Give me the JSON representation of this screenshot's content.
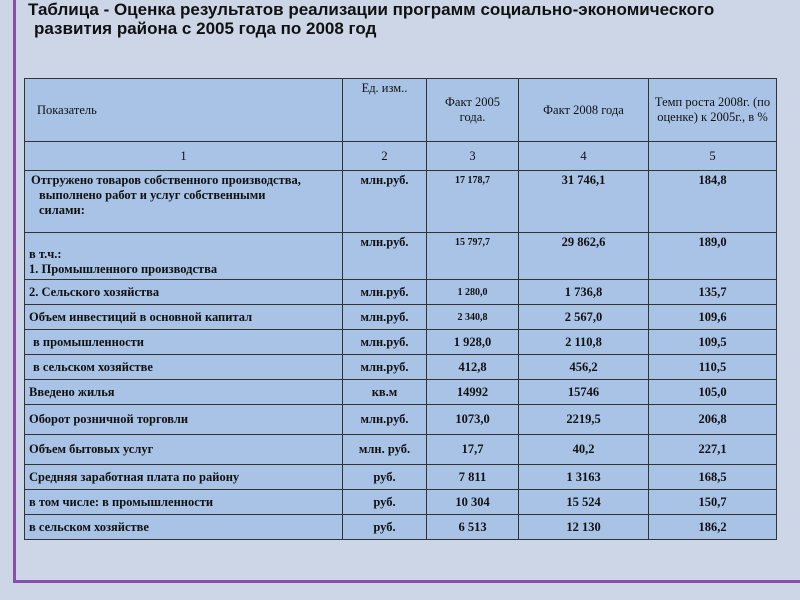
{
  "title": {
    "line1": "Таблица - Оценка результатов реализации программ социально-экономического",
    "line2": "развития района с 2005 года по 2008 год"
  },
  "table": {
    "header": [
      "Показатель",
      "Ед. изм..",
      "Факт 2005 года.",
      "Факт 2008 года",
      "Темп роста 2008г. (по оценке) к 2005г., в %"
    ],
    "numbers": [
      "1",
      "2",
      "3",
      "4",
      "5"
    ],
    "rows": [
      [
        "Отгружено товаров собственного производства, выполнено работ и услуг собственными силами:",
        "млн.руб.",
        "17 178,7",
        "31 746,1",
        "184,8"
      ],
      [
        "в т.ч.:\n1. Промышленного производства",
        "млн.руб.",
        "15 797,7",
        "29 862,6",
        "189,0"
      ],
      [
        "2. Сельского хозяйства",
        "млн.руб.",
        "1 280,0",
        "1 736,8",
        "135,7"
      ],
      [
        "Объем инвестиций в основной капитал",
        "млн.руб.",
        "2 340,8",
        "2 567,0",
        "109,6"
      ],
      [
        "в промышленности",
        "млн.руб.",
        "1 928,0",
        "2 110,8",
        "109,5"
      ],
      [
        "в сельском хозяйстве",
        "млн.руб.",
        "412,8",
        "456,2",
        "110,5"
      ],
      [
        "Введено жилья",
        "кв.м",
        "14992",
        "15746",
        "105,0"
      ],
      [
        "Оборот розничной торговли",
        "млн.руб.",
        "1073,0",
        "2219,5",
        "206,8"
      ],
      [
        "Объем бытовых услуг",
        "млн. руб.",
        "17,7",
        "40,2",
        "227,1"
      ],
      [
        "Средняя заработная плата по району",
        "руб.",
        "7 811",
        "1 3163",
        "168,5"
      ],
      [
        "в том числе: в промышленности",
        "руб.",
        "10 304",
        "15 524",
        "150,7"
      ],
      [
        "в сельском хозяйстве",
        "руб.",
        "6 513",
        "12 130",
        "186,2"
      ]
    ]
  }
}
